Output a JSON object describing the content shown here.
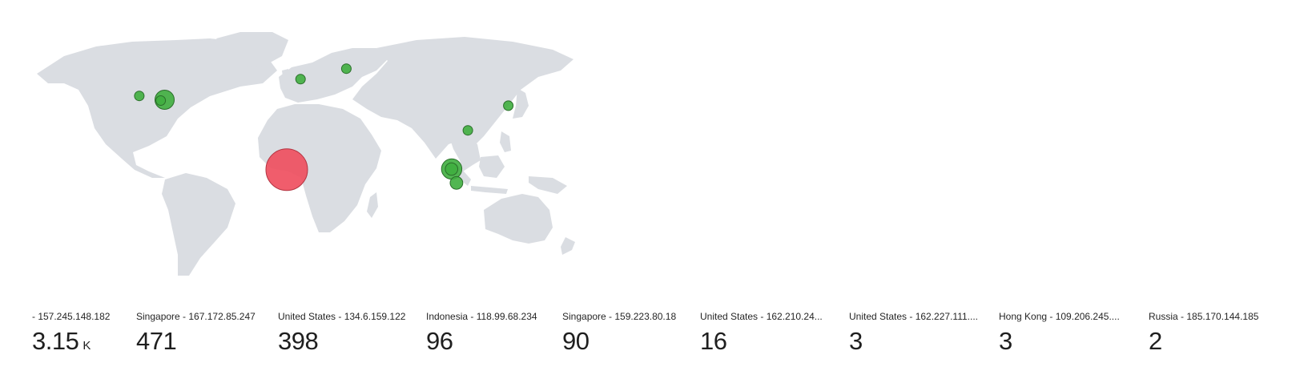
{
  "map": {
    "colors": {
      "land": "#dadde2",
      "ok": "#3fae3f",
      "ok_stroke": "#2b6e2b",
      "bad": "#ef4f5f",
      "bad_stroke": "#b33542"
    },
    "markers": [
      {
        "status": "bad",
        "lon": 0,
        "lat": 1,
        "value": 3150
      },
      {
        "status": "ok",
        "lon": 104,
        "lat": 1.35,
        "value": 471
      },
      {
        "status": "ok",
        "lon": -77,
        "lat": 38.9,
        "value": 398
      },
      {
        "status": "ok",
        "lon": 107,
        "lat": -6.2,
        "value": 96
      },
      {
        "status": "ok",
        "lon": 103.9,
        "lat": 1.3,
        "value": 90
      },
      {
        "status": "ok",
        "lon": -93,
        "lat": 41,
        "value": 16
      },
      {
        "status": "ok",
        "lon": -79.5,
        "lat": 38.5,
        "value": 3
      },
      {
        "status": "ok",
        "lon": 114.2,
        "lat": 22.3,
        "value": 3
      },
      {
        "status": "ok",
        "lon": 37.6,
        "lat": 55.8,
        "value": 2
      },
      {
        "status": "ok",
        "lon": 8.7,
        "lat": 50.1,
        "value": 2
      },
      {
        "status": "ok",
        "lon": 139.7,
        "lat": 35.7,
        "value": 2
      }
    ]
  },
  "stats": [
    {
      "label": "- 157.245.148.182",
      "value": "3.15",
      "unit": "K"
    },
    {
      "label": "Singapore - 167.172.85.247",
      "value": "471",
      "unit": ""
    },
    {
      "label": "United States - 134.6.159.122",
      "value": "398",
      "unit": ""
    },
    {
      "label": "Indonesia - 118.99.68.234",
      "value": "96",
      "unit": ""
    },
    {
      "label": "Singapore - 159.223.80.18",
      "value": "90",
      "unit": ""
    },
    {
      "label": "United States - 162.210.24...",
      "value": "16",
      "unit": ""
    },
    {
      "label": "United States - 162.227.111....",
      "value": "3",
      "unit": ""
    },
    {
      "label": "Hong Kong - 109.206.245....",
      "value": "3",
      "unit": ""
    },
    {
      "label": "Russia - 185.170.144.185",
      "value": "2",
      "unit": ""
    }
  ]
}
